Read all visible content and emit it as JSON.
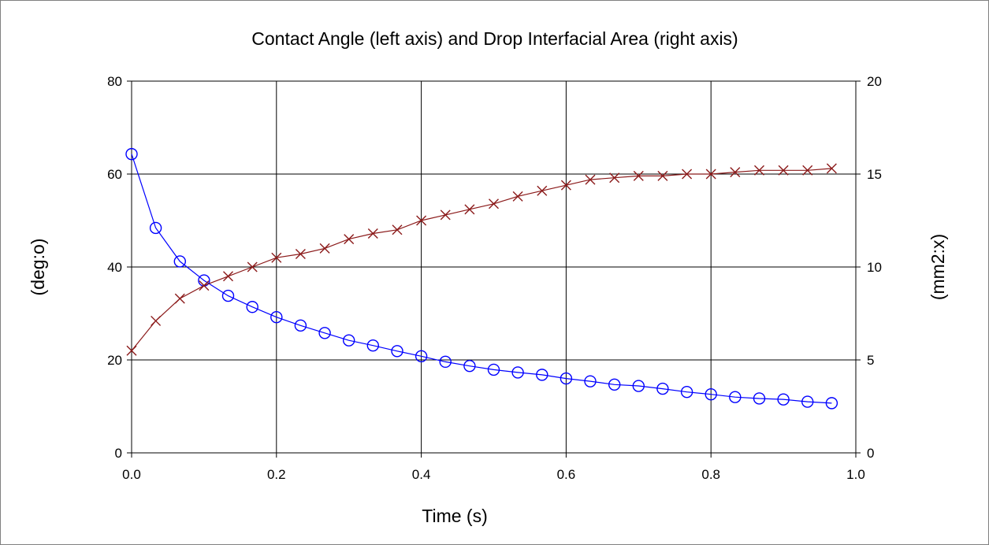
{
  "chart_data": {
    "type": "line",
    "title": "Contact Angle (left axis) and Drop Interfacial Area (right axis)",
    "xlabel": "Time (s)",
    "ylabel_left": "(deg:o)",
    "ylabel_right": "(mm2:x)",
    "xlim": [
      0,
      1
    ],
    "ylim_left": [
      0,
      80
    ],
    "ylim_right": [
      0,
      20
    ],
    "x_ticks": [
      "0.0",
      "0.2",
      "0.4",
      "0.6",
      "0.8",
      "1.0"
    ],
    "y_left_ticks": [
      "0",
      "20",
      "40",
      "60",
      "80"
    ],
    "y_right_ticks": [
      "0",
      "5",
      "10",
      "15",
      "20"
    ],
    "grid": true,
    "x": [
      0.0,
      0.0333,
      0.0667,
      0.1,
      0.1333,
      0.1667,
      0.2,
      0.2333,
      0.2667,
      0.3,
      0.3333,
      0.3667,
      0.4,
      0.4333,
      0.4667,
      0.5,
      0.5333,
      0.5667,
      0.6,
      0.6333,
      0.6667,
      0.7,
      0.7333,
      0.7667,
      0.8,
      0.8333,
      0.8667,
      0.9,
      0.9333,
      0.9667
    ],
    "series": [
      {
        "axis": "left",
        "marker": "circle",
        "color": "#0000ff",
        "values": [
          64.3,
          48.4,
          41.2,
          37.1,
          33.8,
          31.4,
          29.2,
          27.4,
          25.8,
          24.2,
          23.1,
          21.9,
          20.8,
          19.6,
          18.7,
          17.9,
          17.3,
          16.8,
          16.0,
          15.4,
          14.7,
          14.4,
          13.8,
          13.1,
          12.6,
          12.0,
          11.7,
          11.5,
          11.0,
          10.7
        ]
      },
      {
        "axis": "right",
        "marker": "x",
        "color": "#8b1a1a",
        "values": [
          5.5,
          7.1,
          8.3,
          9.0,
          9.5,
          10.0,
          10.5,
          10.7,
          11.0,
          11.5,
          11.8,
          12.0,
          12.5,
          12.8,
          13.1,
          13.4,
          13.8,
          14.1,
          14.4,
          14.7,
          14.8,
          14.9,
          14.9,
          15.0,
          15.0,
          15.1,
          15.2,
          15.2,
          15.2,
          15.3
        ]
      }
    ]
  }
}
